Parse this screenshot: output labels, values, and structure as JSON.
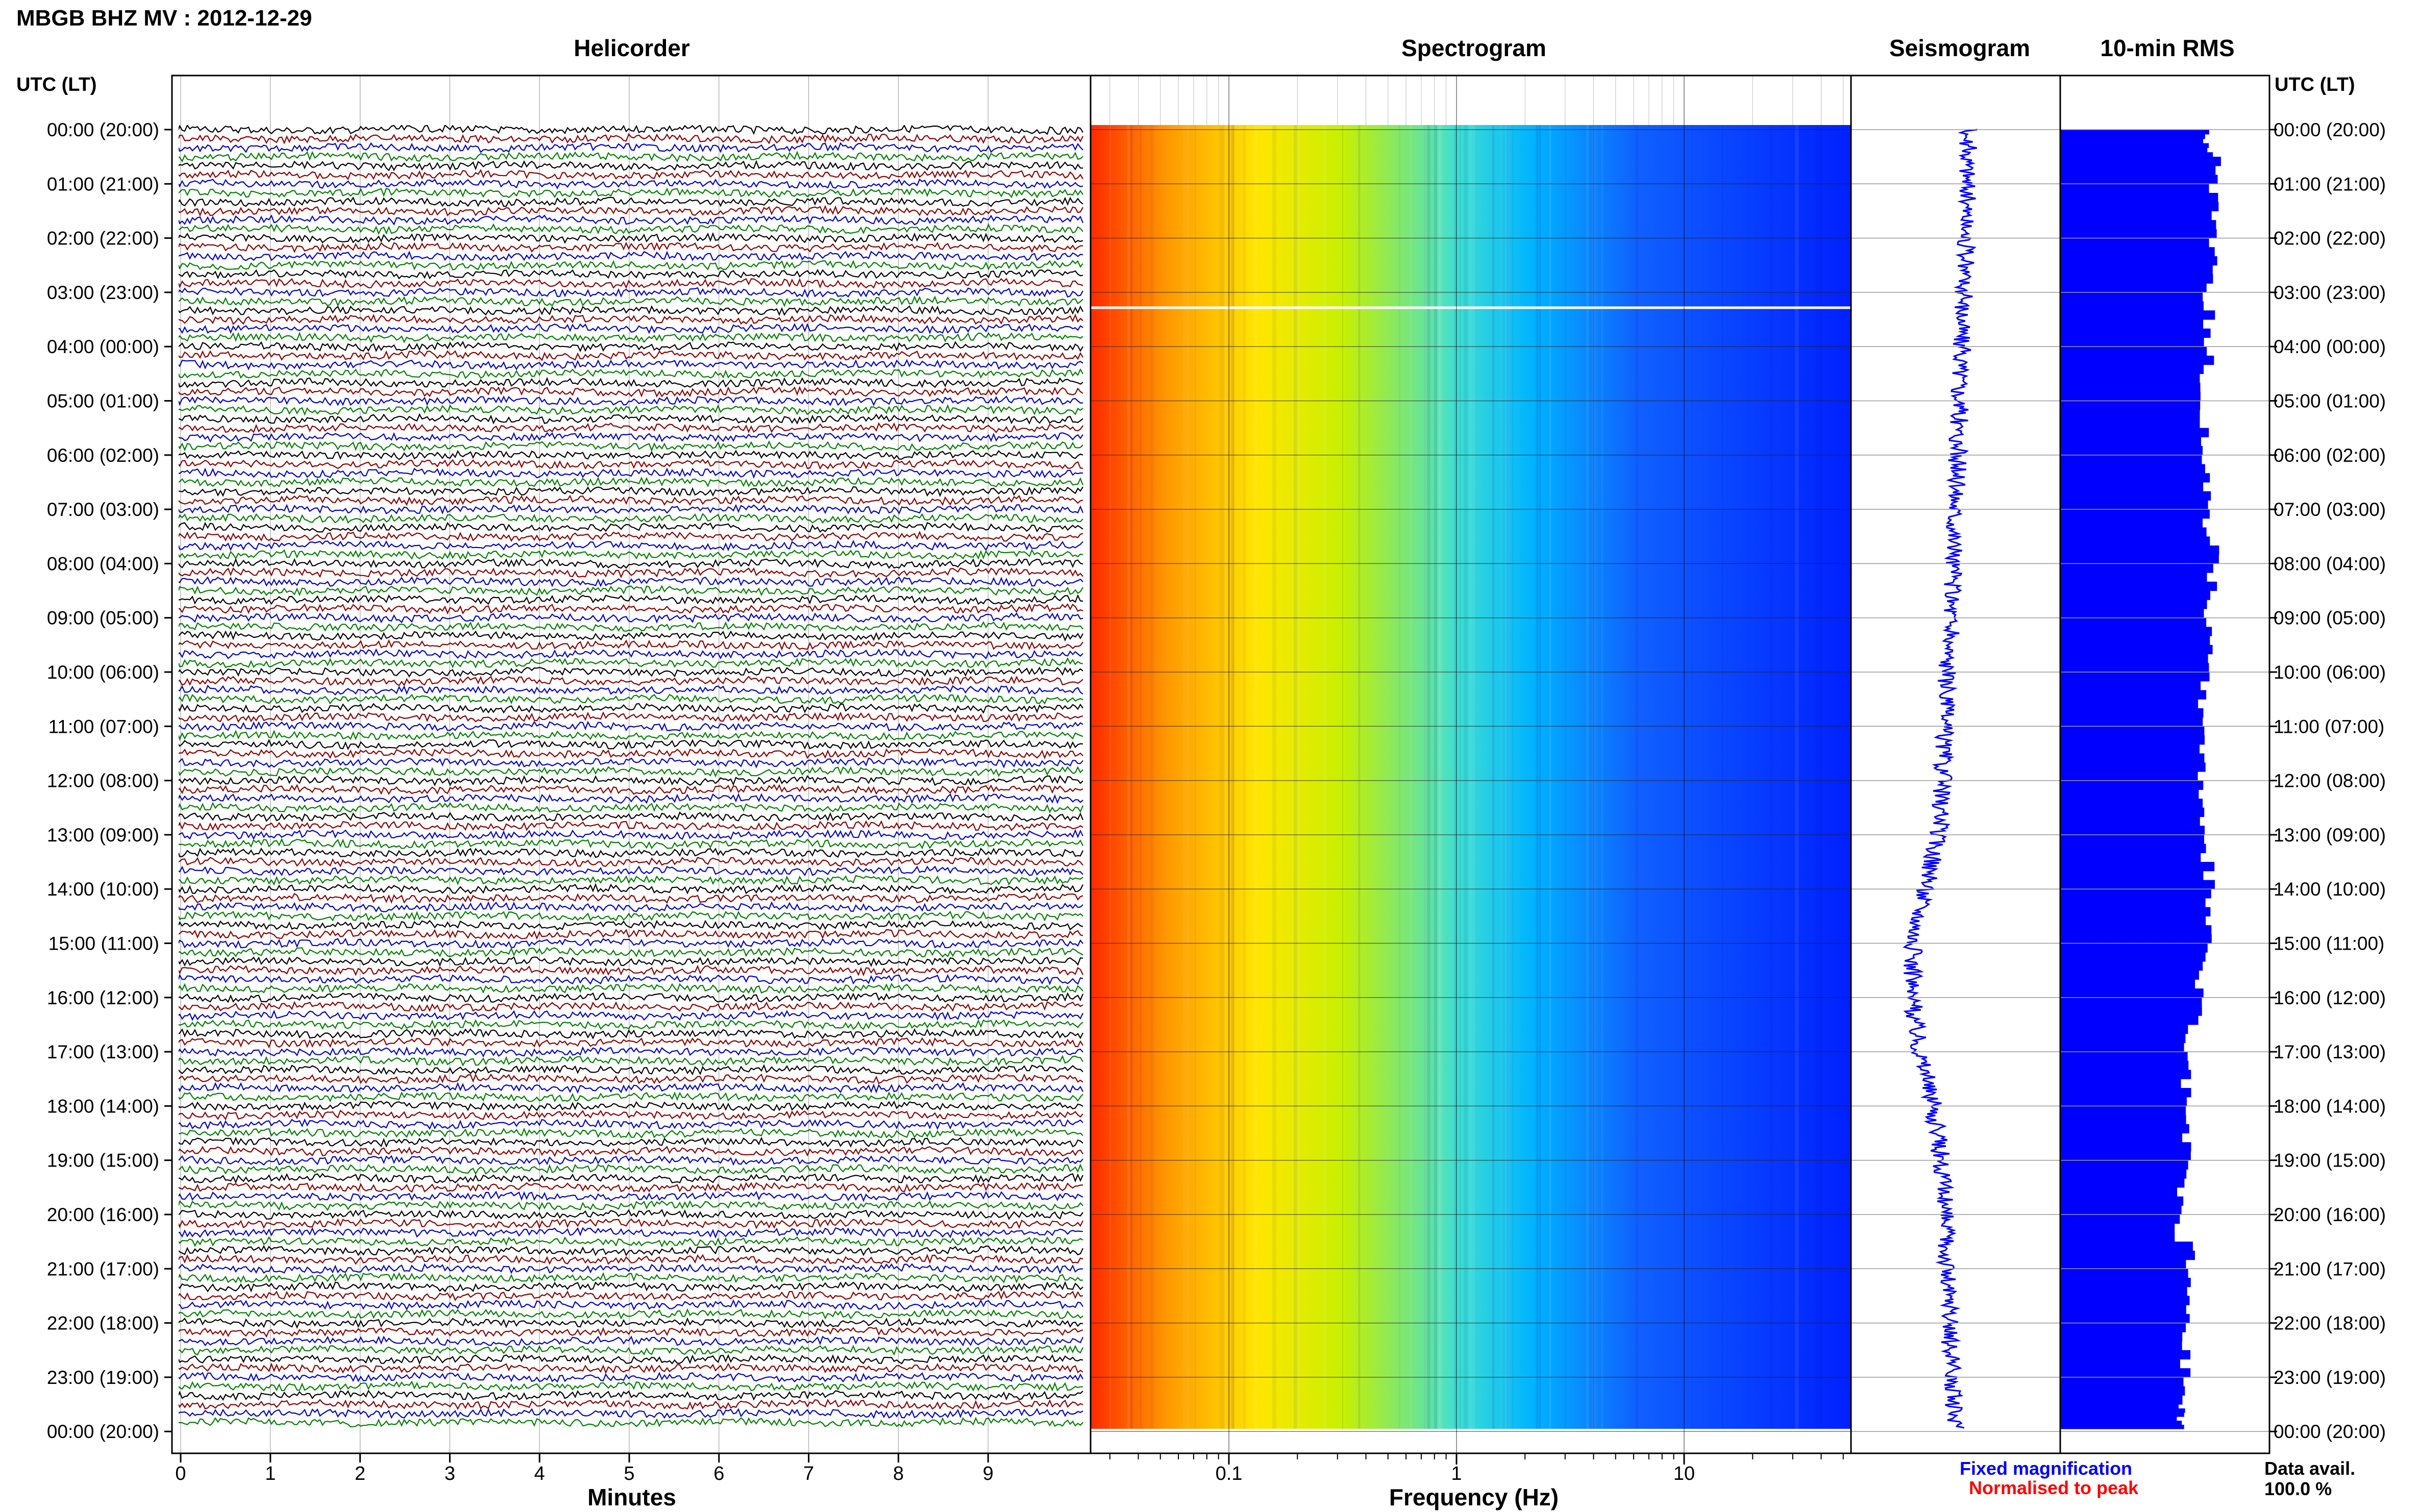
{
  "header": {
    "title": "MBGB BHZ MV : 2012-12-29"
  },
  "panels": {
    "helicorder": "Helicorder",
    "spectrogram": "Spectrogram",
    "seismogram": "Seismogram",
    "rms": "10-min RMS"
  },
  "axis": {
    "left_header": "UTC (LT)",
    "right_header": "UTC (LT)",
    "minutes_label": "Minutes",
    "frequency_label": "Frequency (Hz)"
  },
  "legend": {
    "fixed": "Fixed magnification",
    "normalised": "Normalised to peak",
    "fixed_color": "#0000ff",
    "normalised_color": "#ff0000"
  },
  "data_avail": {
    "label": "Data avail.",
    "value": "100.0 %"
  },
  "chart_data": [
    {
      "type": "line",
      "title": "Helicorder",
      "xlabel": "Minutes",
      "ylabel": "UTC (LT)",
      "x_ticks": [
        0,
        1,
        2,
        3,
        4,
        5,
        6,
        7,
        8,
        9
      ],
      "xlim": [
        0,
        10
      ],
      "y_ticks": [
        "00:00 (20:00)",
        "01:00 (21:00)",
        "02:00 (22:00)",
        "03:00 (23:00)",
        "04:00 (00:00)",
        "05:00 (01:00)",
        "06:00 (02:00)",
        "07:00 (03:00)",
        "08:00 (04:00)",
        "09:00 (05:00)",
        "10:00 (06:00)",
        "11:00 (07:00)",
        "12:00 (08:00)",
        "13:00 (09:00)",
        "14:00 (10:00)",
        "15:00 (11:00)",
        "16:00 (12:00)",
        "17:00 (13:00)",
        "18:00 (14:00)",
        "19:00 (15:00)",
        "20:00 (16:00)",
        "21:00 (17:00)",
        "22:00 (18:00)",
        "23:00 (19:00)",
        "00:00 (20:00)"
      ],
      "trace_colors": [
        "#000000",
        "#8b0000",
        "#0000cd",
        "#008000"
      ],
      "lines_per_hour": 6
    },
    {
      "type": "heatmap",
      "title": "Spectrogram",
      "xlabel": "Frequency (Hz)",
      "x_scale": "log",
      "x_ticks": [
        "0.1",
        "1",
        "10"
      ],
      "xlim": [
        0.025,
        50
      ],
      "colormap": [
        "#ff2a00",
        "#ff9900",
        "#ffe600",
        "#c8f000",
        "#40e0d0",
        "#00b4ff",
        "#1060ff",
        "#0020ff"
      ]
    },
    {
      "type": "line",
      "title": "Seismogram",
      "x_profile": [
        0.56,
        0.56,
        0.55,
        0.54,
        0.53,
        0.52,
        0.51,
        0.5,
        0.49,
        0.48,
        0.46,
        0.45,
        0.44,
        0.42,
        0.36,
        0.3,
        0.29,
        0.33,
        0.39,
        0.43,
        0.45,
        0.46,
        0.47,
        0.48,
        0.5
      ]
    },
    {
      "type": "bar",
      "title": "10-min RMS",
      "values": [
        0.7,
        0.74,
        0.74,
        0.71,
        0.71,
        0.68,
        0.69,
        0.71,
        0.73,
        0.7,
        0.7,
        0.68,
        0.68,
        0.67,
        0.71,
        0.7,
        0.66,
        0.6,
        0.6,
        0.6,
        0.57,
        0.62,
        0.6,
        0.6,
        0.58
      ]
    }
  ]
}
